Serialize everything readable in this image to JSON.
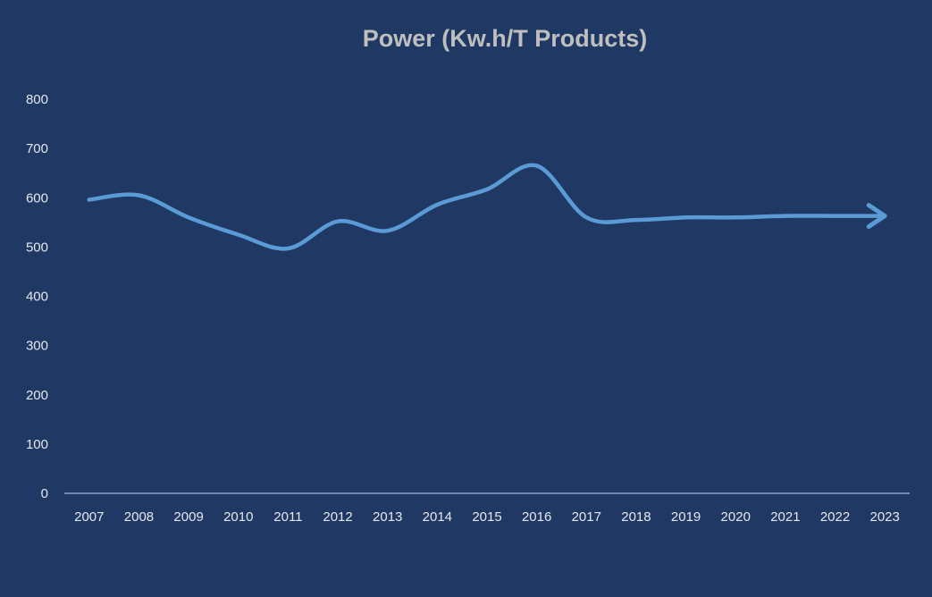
{
  "chart_data": {
    "type": "line",
    "title": "Power (Kw.h/T Products)",
    "xlabel": "",
    "ylabel": "",
    "categories": [
      "2007",
      "2008",
      "2009",
      "2010",
      "2011",
      "2012",
      "2013",
      "2014",
      "2015",
      "2016",
      "2017",
      "2018",
      "2019",
      "2020",
      "2021",
      "2022",
      "2023"
    ],
    "series": [
      {
        "values": [
          596,
          605,
          560,
          525,
          497,
          552,
          533,
          586,
          617,
          665,
          560,
          555,
          560,
          560,
          563,
          563,
          563
        ]
      }
    ],
    "ylim": [
      0,
      800
    ],
    "yticks": [
      0,
      100,
      200,
      300,
      400,
      500,
      600,
      700,
      800
    ],
    "grid": false,
    "legend": "none",
    "end_marker": "arrow",
    "colors": {
      "background": "#1f3864",
      "line": "#5b9bd5",
      "title": "#bfbfbf",
      "axis": "#8fa3c8",
      "text": "#e4e8f0"
    }
  }
}
